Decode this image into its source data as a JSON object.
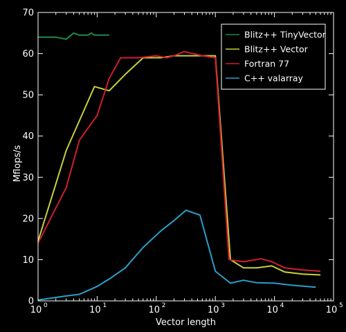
{
  "chart_data": {
    "type": "line",
    "title": "",
    "xlabel": "Vector length",
    "ylabel": "Mflops/s",
    "xscale": "log",
    "xlim": [
      1,
      100000
    ],
    "ylim": [
      0,
      70
    ],
    "x_tick_labels": [
      "10",
      "10",
      "10",
      "10",
      "10",
      "10"
    ],
    "x_tick_exponents": [
      "0",
      "1",
      "2",
      "3",
      "4",
      "5"
    ],
    "y_tick_labels": [
      "0",
      "10",
      "20",
      "30",
      "40",
      "50",
      "60",
      "70"
    ],
    "legend_position": "top-right",
    "background": "#000000",
    "axis_color": "#ffffff",
    "series": [
      {
        "name": "Blitz++ TinyVector",
        "color": "#1e8c4b",
        "x": [
          1,
          2,
          3,
          4,
          5,
          6,
          7,
          8,
          9,
          10,
          16
        ],
        "y": [
          64,
          64,
          63.5,
          65,
          64.5,
          64.5,
          64.5,
          65,
          64.5,
          64.5,
          64.5
        ]
      },
      {
        "name": "Blitz++ Vector",
        "color": "#c8d23c",
        "x": [
          1,
          3,
          9,
          16,
          30,
          60,
          120,
          200,
          300,
          500,
          1000,
          1800,
          3000,
          5000,
          9000,
          15000,
          30000,
          60000
        ],
        "y": [
          14.5,
          36.5,
          52,
          51,
          55,
          59,
          59,
          59.5,
          59.5,
          59.5,
          59.5,
          10,
          8,
          8,
          8.5,
          7,
          6.5,
          6.3
        ]
      },
      {
        "name": "Fortran 77",
        "color": "#d01e32",
        "x": [
          1,
          3,
          5,
          10,
          16,
          25,
          50,
          100,
          150,
          200,
          300,
          600,
          1000,
          1700,
          3000,
          6000,
          9000,
          15000,
          30000,
          60000
        ],
        "y": [
          14,
          27.5,
          39,
          45,
          54,
          59,
          59,
          59.5,
          59,
          59.5,
          60.5,
          59.5,
          59,
          10,
          9.5,
          10.2,
          9.5,
          8,
          7.5,
          7.2
        ]
      },
      {
        "name": "C++ valarray",
        "color": "#2aa0cc",
        "x": [
          1,
          3,
          5,
          10,
          16,
          30,
          60,
          120,
          200,
          320,
          550,
          1000,
          1800,
          3000,
          5000,
          10000,
          20000,
          50000
        ],
        "y": [
          0.2,
          1.2,
          1.6,
          3.5,
          5.3,
          8,
          13,
          17,
          19.5,
          22,
          20.8,
          7.2,
          4.3,
          5,
          4.4,
          4.3,
          3.8,
          3.3
        ]
      }
    ]
  }
}
